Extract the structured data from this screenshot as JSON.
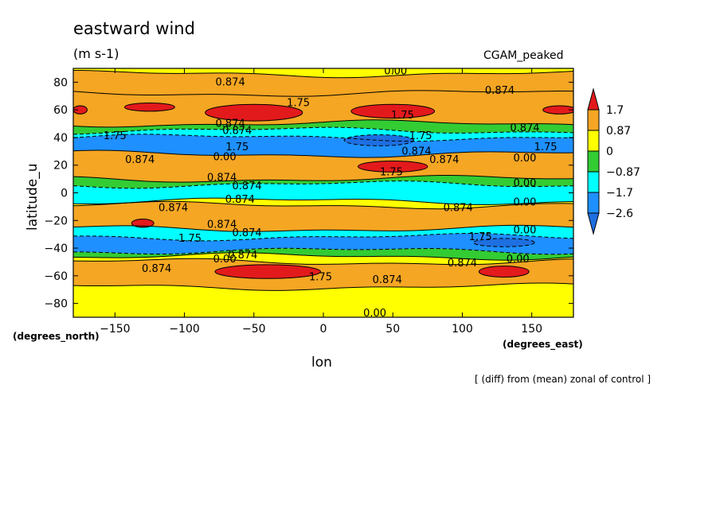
{
  "header": {
    "title": "eastward wind",
    "units": "(m s-1)",
    "run_name": "CGAM_peaked",
    "note": "[ (diff) from (mean) zonal of control ]"
  },
  "axes": {
    "xlabel": "lon",
    "xunits": "(degrees_east)",
    "ylabel": "latitude_u",
    "yunits": "(degrees_north)"
  },
  "chart_data": {
    "type": "heatmap",
    "title": "eastward wind",
    "subtitle": "(m s-1)",
    "xlabel": "lon",
    "ylabel": "latitude_u",
    "xlim": [
      -180,
      180
    ],
    "ylim": [
      -90,
      90
    ],
    "x_ticks": [
      -150,
      -100,
      -50,
      0,
      50,
      100,
      150
    ],
    "y_ticks": [
      -80,
      -60,
      -40,
      -20,
      0,
      20,
      40,
      60,
      80
    ],
    "colorbar": {
      "levels": [
        "1.7",
        "0.87",
        "0",
        "-0.87",
        "-1.7",
        "-2.6"
      ],
      "colors": [
        "#e31a1c",
        "#f5a623",
        "#ffff00",
        "#33cc33",
        "#00ffff",
        "#1e90ff",
        "#1e6fe0"
      ]
    },
    "bands": [
      {
        "lat_top": 90,
        "lat_bottom": 86,
        "value": 0.4
      },
      {
        "lat_top": 86,
        "lat_bottom": 72,
        "value": 1.2
      },
      {
        "lat_top": 72,
        "lat_bottom": 50,
        "value": 1.3
      },
      {
        "lat_top": 50,
        "lat_bottom": 45,
        "value": -0.5
      },
      {
        "lat_top": 45,
        "lat_bottom": 40,
        "value": -1.2
      },
      {
        "lat_top": 40,
        "lat_bottom": 28,
        "value": -2.0
      },
      {
        "lat_top": 28,
        "lat_bottom": 10,
        "value": 1.2
      },
      {
        "lat_top": 10,
        "lat_bottom": 6,
        "value": -0.5
      },
      {
        "lat_top": 6,
        "lat_bottom": -6,
        "value": -1.4
      },
      {
        "lat_top": -6,
        "lat_bottom": -9,
        "value": 0.3
      },
      {
        "lat_top": -9,
        "lat_bottom": -26,
        "value": 1.1
      },
      {
        "lat_top": -26,
        "lat_bottom": -32,
        "value": -1.3
      },
      {
        "lat_top": -32,
        "lat_bottom": -42,
        "value": -2.0
      },
      {
        "lat_top": -42,
        "lat_bottom": -46,
        "value": -0.6
      },
      {
        "lat_top": -46,
        "lat_bottom": -50,
        "value": 0.4
      },
      {
        "lat_top": -50,
        "lat_bottom": -68,
        "value": 1.2
      },
      {
        "lat_top": -68,
        "lat_bottom": -90,
        "value": 0.4
      }
    ],
    "maxima": [
      {
        "lon": -125,
        "lat": 62,
        "rlon": 18,
        "rlat": 3,
        "value": 1.9
      },
      {
        "lon": -50,
        "lat": 58,
        "rlon": 35,
        "rlat": 6,
        "value": 1.9
      },
      {
        "lon": 50,
        "lat": 59,
        "rlon": 30,
        "rlat": 5,
        "value": 1.9
      },
      {
        "lon": 170,
        "lat": 60,
        "rlon": 12,
        "rlat": 3,
        "value": 1.9
      },
      {
        "lon": -175,
        "lat": 60,
        "rlon": 5,
        "rlat": 3,
        "value": 1.9
      },
      {
        "lon": 50,
        "lat": 19,
        "rlon": 25,
        "rlat": 4,
        "value": 1.9
      },
      {
        "lon": -130,
        "lat": -22,
        "rlon": 8,
        "rlat": 3,
        "value": 1.9
      },
      {
        "lon": -40,
        "lat": -57,
        "rlon": 38,
        "rlat": 5,
        "value": 1.9
      },
      {
        "lon": 130,
        "lat": -57,
        "rlon": 18,
        "rlat": 4,
        "value": 1.9
      },
      {
        "lon": 40,
        "lat": 38,
        "rlon": 25,
        "rlat": 4,
        "value": -2.8
      },
      {
        "lon": 130,
        "lat": -36,
        "rlon": 22,
        "rlat": 3,
        "value": -2.8
      }
    ],
    "contour_labels": [
      {
        "text": "0.00",
        "lon": 52,
        "lat": 88
      },
      {
        "text": "0.874",
        "lon": -67,
        "lat": 80
      },
      {
        "text": "0.874",
        "lon": 127,
        "lat": 74
      },
      {
        "text": "1.75",
        "lon": -18,
        "lat": 65
      },
      {
        "text": "1.75",
        "lon": 57,
        "lat": 56
      },
      {
        "text": "0.874",
        "lon": -67,
        "lat": 50
      },
      {
        "text": "0.874",
        "lon": -62,
        "lat": 45
      },
      {
        "text": "0.874",
        "lon": 145,
        "lat": 47
      },
      {
        "text": "1.75",
        "lon": -150,
        "lat": 41
      },
      {
        "text": "1.75",
        "lon": 70,
        "lat": 41
      },
      {
        "text": "1.75",
        "lon": -62,
        "lat": 33
      },
      {
        "text": "0.874",
        "lon": 67,
        "lat": 30
      },
      {
        "text": "1.75",
        "lon": 160,
        "lat": 33
      },
      {
        "text": "0.00",
        "lon": -71,
        "lat": 26
      },
      {
        "text": "0.00",
        "lon": 145,
        "lat": 25
      },
      {
        "text": "0.874",
        "lon": -132,
        "lat": 24
      },
      {
        "text": "0.874",
        "lon": 87,
        "lat": 24
      },
      {
        "text": "1.75",
        "lon": 49,
        "lat": 15
      },
      {
        "text": "0.874",
        "lon": -73,
        "lat": 11
      },
      {
        "text": "0.874",
        "lon": -55,
        "lat": 5
      },
      {
        "text": "0.00",
        "lon": 145,
        "lat": 7
      },
      {
        "text": "0.874",
        "lon": -60,
        "lat": -5
      },
      {
        "text": "0.874",
        "lon": -108,
        "lat": -11
      },
      {
        "text": "0.874",
        "lon": 97,
        "lat": -11
      },
      {
        "text": "0.00",
        "lon": 145,
        "lat": -7
      },
      {
        "text": "0.874",
        "lon": -73,
        "lat": -23
      },
      {
        "text": "0.874",
        "lon": -55,
        "lat": -29
      },
      {
        "text": "0.00",
        "lon": 145,
        "lat": -27
      },
      {
        "text": "1.75",
        "lon": -96,
        "lat": -33
      },
      {
        "text": "1.75",
        "lon": 113,
        "lat": -32
      },
      {
        "text": "0.874",
        "lon": -58,
        "lat": -45
      },
      {
        "text": "0.00",
        "lon": -71,
        "lat": -48
      },
      {
        "text": "0.00",
        "lon": 140,
        "lat": -48
      },
      {
        "text": "0.874",
        "lon": -120,
        "lat": -55
      },
      {
        "text": "0.874",
        "lon": 100,
        "lat": -51
      },
      {
        "text": "1.75",
        "lon": -2,
        "lat": -61
      },
      {
        "text": "0.874",
        "lon": 46,
        "lat": -63
      },
      {
        "text": "0.00",
        "lon": 37,
        "lat": -87
      }
    ]
  }
}
